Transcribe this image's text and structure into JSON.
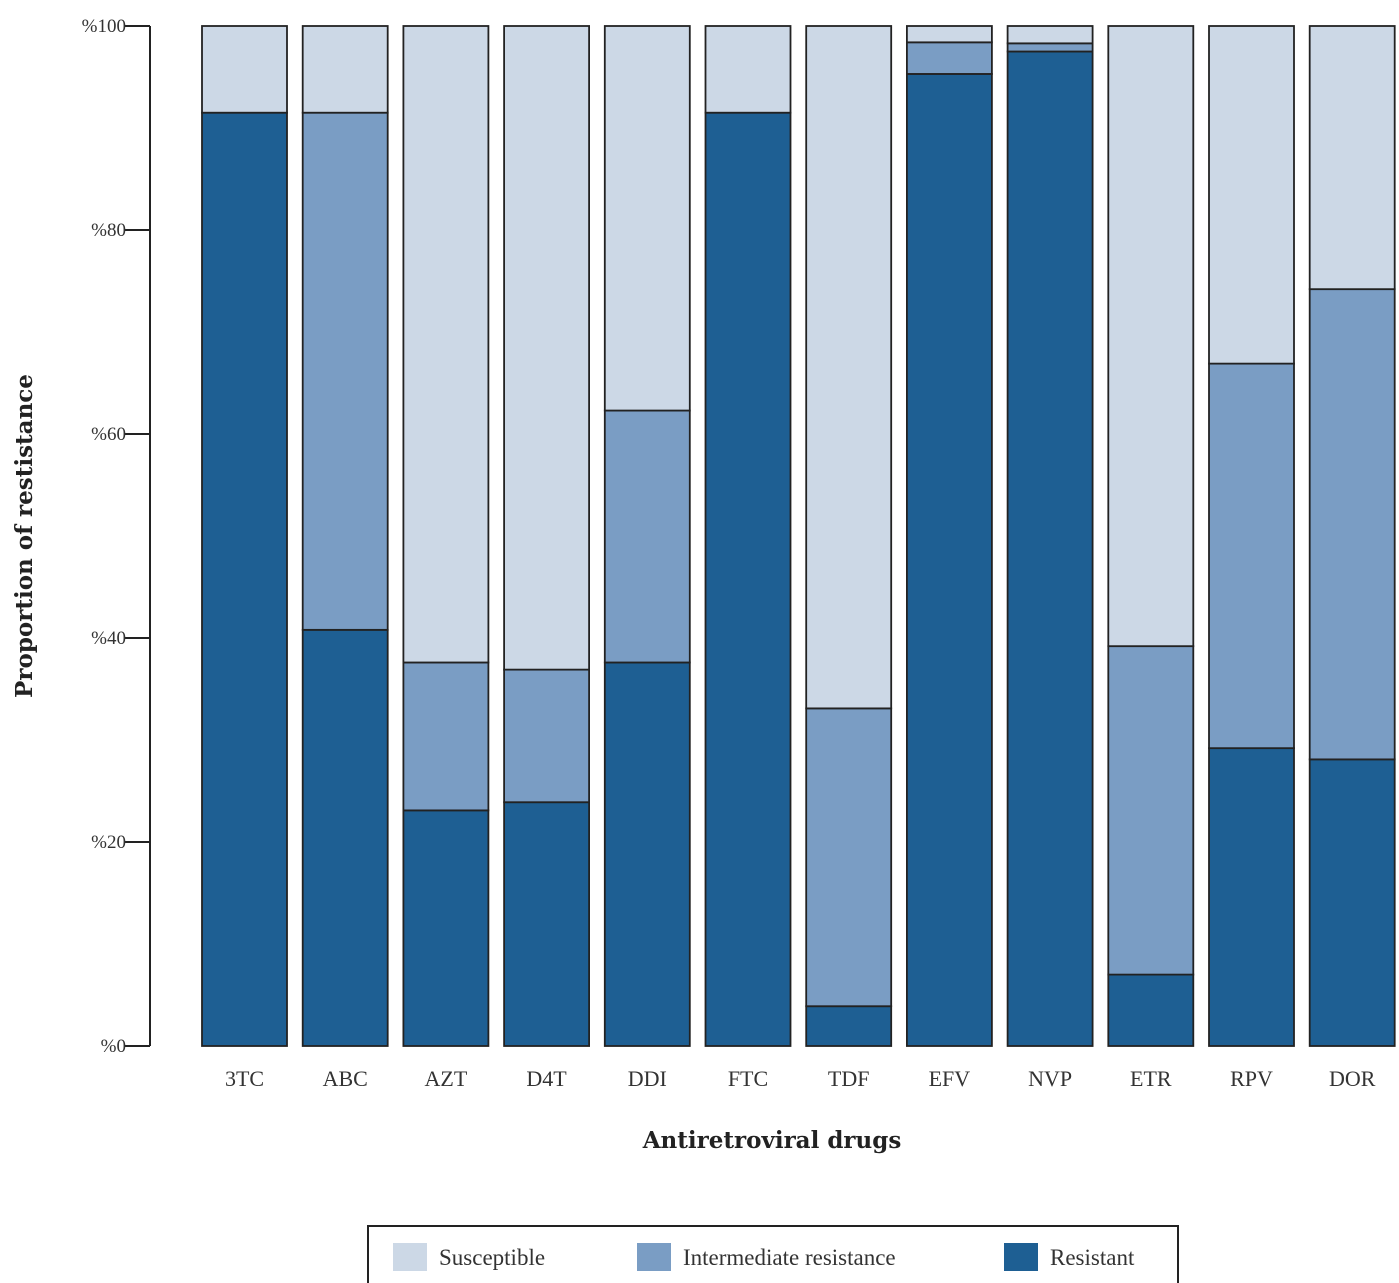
{
  "chart_data": {
    "type": "bar",
    "stacked": true,
    "xlabel": "Antiretroviral drugs",
    "ylabel": "Proportion of restistance",
    "ylim": [
      0,
      100
    ],
    "yticks": [
      0,
      20,
      40,
      60,
      80,
      100
    ],
    "ytick_labels": [
      "%0",
      "%20",
      "%40",
      "%60",
      "%80",
      "%100"
    ],
    "categories": [
      "3TC",
      "ABC",
      "AZT",
      "D4T",
      "DDI",
      "FTC",
      "TDF",
      "EFV",
      "NVP",
      "ETR",
      "RPV",
      "DOR"
    ],
    "series": [
      {
        "name": "Resistant",
        "color": "#1e5f93",
        "values": [
          91.5,
          40.8,
          23.1,
          23.9,
          37.6,
          91.5,
          3.9,
          95.3,
          97.5,
          7.0,
          29.2,
          28.1
        ]
      },
      {
        "name": "Intermediate resistance",
        "color": "#7a9dc4",
        "values": [
          0,
          50.7,
          14.5,
          13.0,
          24.7,
          0,
          29.2,
          3.1,
          0.8,
          32.2,
          37.7,
          46.1
        ]
      },
      {
        "name": "Susceptible",
        "color": "#ccd8e6",
        "values": [
          8.5,
          8.5,
          62.4,
          63.1,
          37.7,
          8.5,
          66.9,
          1.6,
          1.7,
          60.8,
          33.1,
          25.8
        ]
      }
    ],
    "legend": {
      "position": "bottom",
      "items": [
        {
          "label": "Susceptible",
          "color": "#ccd8e6"
        },
        {
          "label": "Intermediate resistance",
          "color": "#7a9dc4"
        },
        {
          "label": "Resistant",
          "color": "#1e5f93"
        }
      ]
    }
  }
}
